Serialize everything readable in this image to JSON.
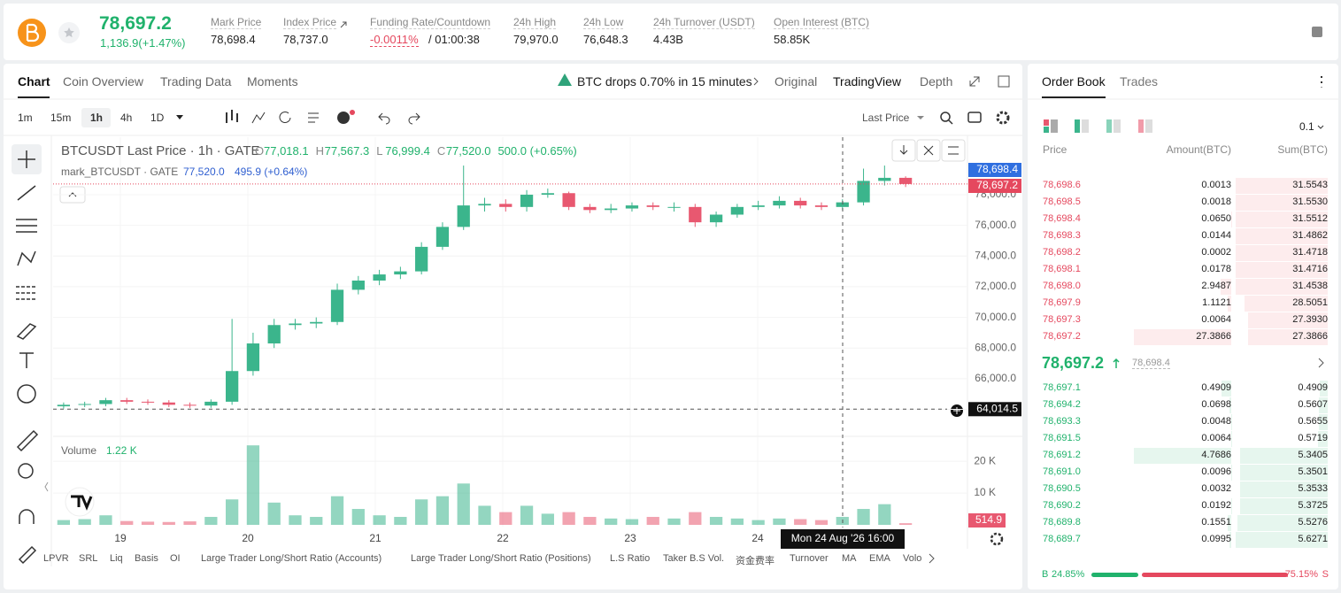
{
  "header": {
    "price": "78,697.2",
    "change": "1,136.9(+1.47%)",
    "stats": [
      {
        "label": "Mark Price",
        "value": "78,698.4"
      },
      {
        "label": "Index Price",
        "value": "78,737.0"
      },
      {
        "label": "Funding Rate/Countdown",
        "value": "-0.0011%",
        "extra": "/ 01:00:38"
      },
      {
        "label": "24h High",
        "value": "79,970.0"
      },
      {
        "label": "24h Low",
        "value": "76,648.3"
      },
      {
        "label": "24h Turnover (USDT)",
        "value": "4.43B"
      },
      {
        "label": "Open Interest (BTC)",
        "value": "58.85K"
      }
    ]
  },
  "tabs": [
    "Chart",
    "Coin Overview",
    "Trading Data",
    "Moments"
  ],
  "alert": "BTC drops 0.70% in 15 minutes",
  "views": [
    "Original",
    "TradingView",
    "Depth"
  ],
  "intervals": [
    "1m",
    "15m",
    "1h",
    "4h",
    "1D"
  ],
  "price_type": "Last Price",
  "chart_data": {
    "type": "candlestick",
    "title": "BTCUSDT Last Price · 1h · GATE",
    "ohlc": [
      {
        "key": "O",
        "value": "77,018.1"
      },
      {
        "key": "H",
        "value": "77,567.3"
      },
      {
        "key": "L",
        "value": "76,999.4"
      },
      {
        "key": "C",
        "value": "77,520.0"
      }
    ],
    "ohlc_change": "500.0 (+0.65%)",
    "mark": {
      "name": "mark_BTCUSDT · GATE",
      "value": "77,520.0",
      "change": "495.9 (+0.64%)"
    },
    "open": [
      64200,
      64300,
      64350,
      64600,
      64500,
      64450,
      64300,
      64250,
      64500,
      66500,
      68300,
      69500,
      69600,
      69700,
      71800,
      72400,
      72800,
      73000,
      74600,
      75900,
      77300,
      77400,
      77200,
      78000,
      78100,
      77200,
      77000,
      77100,
      77300,
      77200,
      77200,
      76200,
      76700,
      77200,
      77300,
      77600,
      77300,
      77200,
      77500,
      78900,
      79100
    ],
    "high": [
      64450,
      64500,
      64750,
      64750,
      64650,
      64600,
      64450,
      64650,
      69900,
      69000,
      69900,
      69900,
      70000,
      72200,
      72700,
      73100,
      73300,
      74900,
      76200,
      79900,
      77800,
      77700,
      78300,
      78400,
      78200,
      77400,
      77400,
      77500,
      77500,
      77500,
      77400,
      76900,
      77400,
      77600,
      77900,
      77800,
      77500,
      77700,
      79700,
      79900,
      79200
    ],
    "low": [
      64050,
      64150,
      64200,
      64350,
      64300,
      64150,
      64100,
      64100,
      64300,
      66200,
      68000,
      69200,
      69300,
      69500,
      71500,
      72100,
      72500,
      72800,
      74400,
      75700,
      76900,
      76900,
      76900,
      77800,
      77000,
      76800,
      76800,
      76900,
      77000,
      76900,
      75900,
      75900,
      76500,
      77000,
      77100,
      77100,
      77000,
      77000,
      77300,
      78600,
      78500
    ],
    "close": [
      64300,
      64350,
      64600,
      64500,
      64450,
      64300,
      64250,
      64500,
      66500,
      68300,
      69500,
      69600,
      69700,
      71800,
      72400,
      72800,
      73000,
      74600,
      75900,
      77300,
      77400,
      77200,
      78000,
      78100,
      77200,
      77000,
      77100,
      77300,
      77200,
      77200,
      76200,
      76700,
      77200,
      77300,
      77600,
      77300,
      77200,
      77500,
      78900,
      79100,
      78697.2
    ],
    "ylim": [
      62300,
      81750
    ],
    "yticks": [
      {
        "value": 64000,
        "label": "64,000.0"
      },
      {
        "value": 66000,
        "label": "66,000.0"
      },
      {
        "value": 68000,
        "label": "68,000.0"
      },
      {
        "value": 70000,
        "label": "70,000.0"
      },
      {
        "value": 72000,
        "label": "72,000.0"
      },
      {
        "value": 74000,
        "label": "74,000.0"
      },
      {
        "value": 76000,
        "label": "76,000.0"
      },
      {
        "value": 78000,
        "label": "78,000.0"
      }
    ],
    "price_tags": [
      {
        "value": 78698.4,
        "label": "78,698.4",
        "color": "#2f6fe0"
      },
      {
        "value": 78697.2,
        "label": "78,697.2",
        "color": "#e5485e"
      },
      {
        "value": 64014.5,
        "label": "64,014.5",
        "color": "#111111"
      }
    ],
    "x_labels": [
      "19",
      "20",
      "21",
      "22",
      "23",
      "24"
    ],
    "crosshair": "Mon 24 Aug '26  16:00",
    "up_color": "#3bb58c",
    "down_color": "#e85870",
    "volume": {
      "title": "Volume",
      "current": "1.22 K",
      "values": [
        1500,
        1800,
        3000,
        1200,
        1000,
        900,
        1100,
        2500,
        8000,
        25000,
        7000,
        3000,
        2500,
        9000,
        5000,
        3000,
        2500,
        8000,
        9000,
        13000,
        6000,
        4000,
        6000,
        3500,
        4000,
        2500,
        2000,
        1800,
        2500,
        2000,
        4000,
        2500,
        2000,
        1500,
        2000,
        1800,
        1500,
        2500,
        5000,
        6500,
        514.9
      ],
      "ylim": [
        0,
        27000
      ],
      "yticks": [
        {
          "value": 10000,
          "label": "10 K"
        },
        {
          "value": 20000,
          "label": "20 K"
        }
      ]
    }
  },
  "indicators": [
    "LPVR",
    "SRL",
    "Liq",
    "Basis",
    "OI",
    "Large Trader Long/Short Ratio (Accounts)",
    "Large Trader Long/Short Ratio (Positions)",
    "L.S Ratio",
    "Taker B.S Vol.",
    "资金费率",
    "Turnover",
    "MA",
    "EMA",
    "Volo"
  ],
  "order_book": {
    "tabs": [
      "Order Book",
      "Trades"
    ],
    "precision": "0.1",
    "columns": [
      "Price",
      "Amount(BTC)",
      "Sum(BTC)"
    ],
    "asks": [
      [
        "78,698.6",
        "0.0013",
        "31.5543"
      ],
      [
        "78,698.5",
        "0.0018",
        "31.5530"
      ],
      [
        "78,698.4",
        "0.0650",
        "31.5512"
      ],
      [
        "78,698.3",
        "0.0144",
        "31.4862"
      ],
      [
        "78,698.2",
        "0.0002",
        "31.4718"
      ],
      [
        "78,698.1",
        "0.0178",
        "31.4716"
      ],
      [
        "78,698.0",
        "2.9487",
        "31.4538"
      ],
      [
        "78,697.9",
        "1.1121",
        "28.5051"
      ],
      [
        "78,697.3",
        "0.0064",
        "27.3930"
      ],
      [
        "78,697.2",
        "27.3866",
        "27.3866"
      ]
    ],
    "mid_price": "78,697.2",
    "mark_price": "78,698.4",
    "bids": [
      [
        "78,697.1",
        "0.4909",
        "0.4909"
      ],
      [
        "78,694.2",
        "0.0698",
        "0.5607"
      ],
      [
        "78,693.3",
        "0.0048",
        "0.5655"
      ],
      [
        "78,691.5",
        "0.0064",
        "0.5719"
      ],
      [
        "78,691.2",
        "4.7686",
        "5.3405"
      ],
      [
        "78,691.0",
        "0.0096",
        "5.3501"
      ],
      [
        "78,690.5",
        "0.0032",
        "5.3533"
      ],
      [
        "78,690.2",
        "0.0192",
        "5.3725"
      ],
      [
        "78,689.8",
        "0.1551",
        "5.5276"
      ],
      [
        "78,689.7",
        "0.0995",
        "5.6271"
      ]
    ],
    "ratio": {
      "buy_label": "B",
      "buy": 24.85,
      "buy_text": "24.85%",
      "sell": 75.15,
      "sell_text": "75.15%",
      "sell_label": "S"
    }
  }
}
